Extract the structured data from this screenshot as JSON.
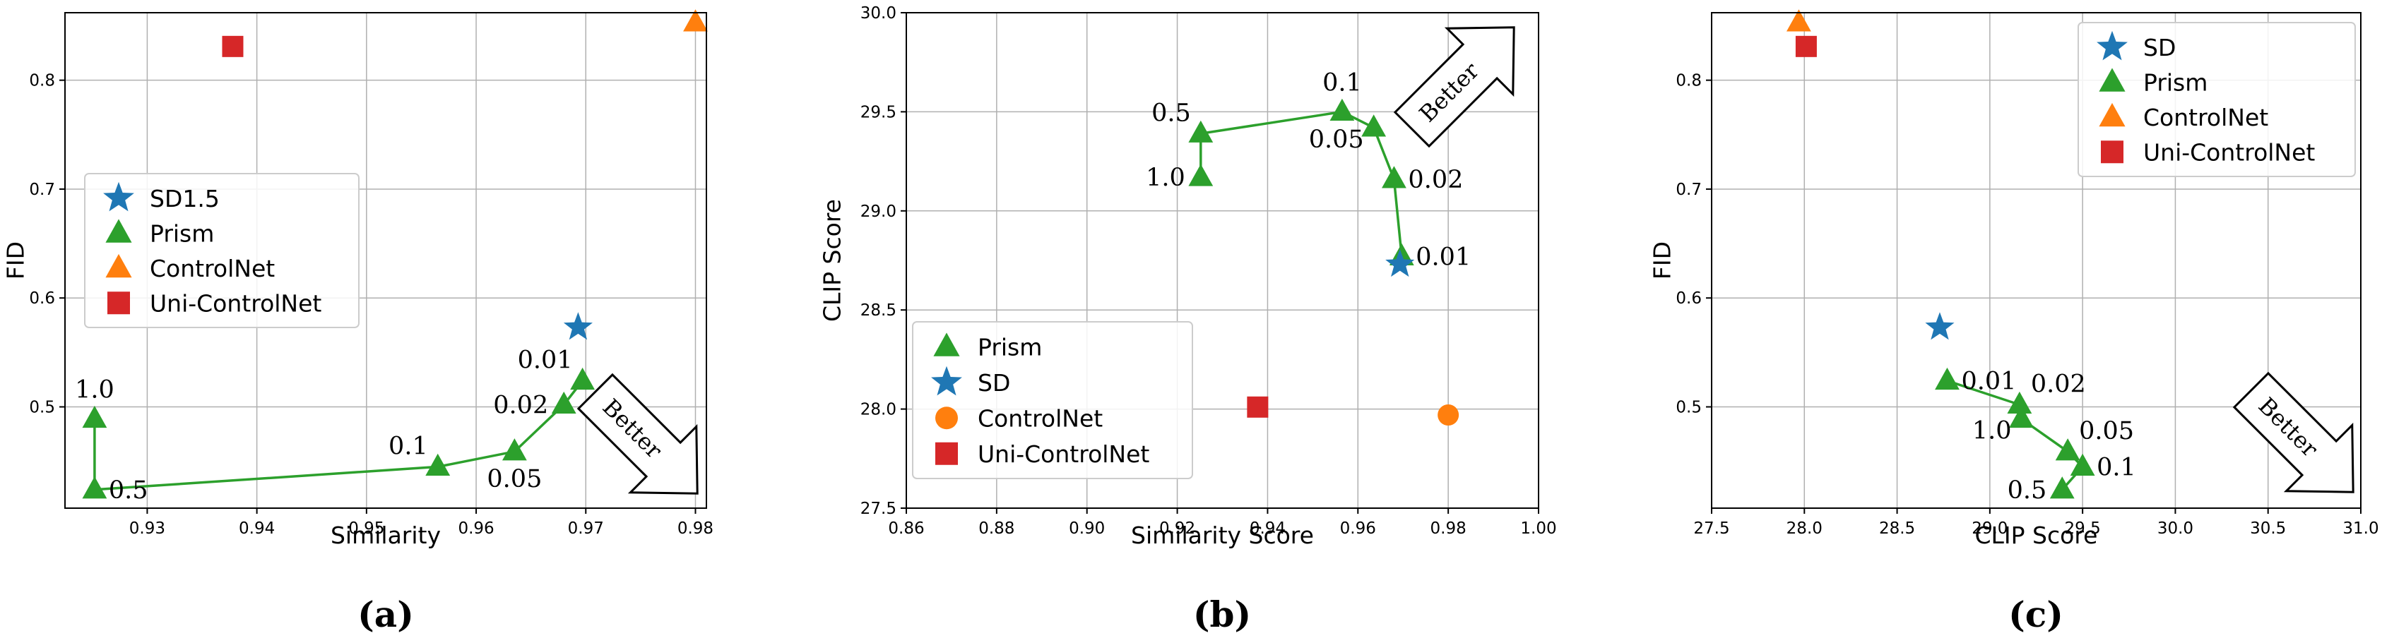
{
  "colors": {
    "SD": "#1f77b4",
    "Prism": "#2ca02c",
    "ControlNet": "#ff7f0e",
    "UniControlNet": "#d62728"
  },
  "chart_data": [
    {
      "id": "a",
      "type": "scatter",
      "caption": "(a)",
      "xlabel": "Similarity",
      "ylabel": "FID",
      "xlim": [
        0.9225,
        0.981
      ],
      "ylim": [
        0.407,
        0.862
      ],
      "xticks": [
        0.93,
        0.94,
        0.95,
        0.96,
        0.97,
        0.98
      ],
      "xtick_labels": [
        "0.93",
        "0.94",
        "0.95",
        "0.96",
        "0.97",
        "0.98"
      ],
      "yticks": [
        0.5,
        0.6,
        0.7,
        0.8
      ],
      "ytick_labels": [
        "0.5",
        "0.6",
        "0.7",
        "0.8"
      ],
      "grid": true,
      "legend": {
        "position": "center-left",
        "entries": [
          {
            "label": "SD1.5",
            "marker": "star",
            "colorKey": "SD"
          },
          {
            "label": "Prism",
            "marker": "triangle",
            "colorKey": "Prism"
          },
          {
            "label": "ControlNet",
            "marker": "triangle",
            "colorKey": "ControlNet"
          },
          {
            "label": "Uni-ControlNet",
            "marker": "square",
            "colorKey": "UniControlNet"
          }
        ]
      },
      "better_arrow": {
        "text": "Better",
        "direction": "down-right"
      },
      "series": [
        {
          "name": "Prism",
          "marker": "triangle",
          "colorKey": "Prism",
          "connected": true,
          "points": [
            {
              "x": 0.9252,
              "y": 0.489,
              "label": "1.0",
              "label_pos": "above"
            },
            {
              "x": 0.9252,
              "y": 0.424,
              "label": "0.5",
              "label_pos": "right"
            },
            {
              "x": 0.9565,
              "y": 0.445,
              "label": "0.1",
              "label_pos": "upper-left"
            },
            {
              "x": 0.9635,
              "y": 0.459,
              "label": "0.05",
              "label_pos": "below"
            },
            {
              "x": 0.968,
              "y": 0.502,
              "label": "0.02",
              "label_pos": "left"
            },
            {
              "x": 0.9697,
              "y": 0.524,
              "label": "0.01",
              "label_pos": "upper-left"
            }
          ]
        },
        {
          "name": "SD1.5",
          "marker": "star",
          "colorKey": "SD",
          "points": [
            {
              "x": 0.9693,
              "y": 0.573
            }
          ]
        },
        {
          "name": "ControlNet",
          "marker": "triangle",
          "colorKey": "ControlNet",
          "points": [
            {
              "x": 0.98,
              "y": 0.853
            }
          ]
        },
        {
          "name": "Uni-ControlNet",
          "marker": "square",
          "colorKey": "UniControlNet",
          "points": [
            {
              "x": 0.9378,
              "y": 0.831
            }
          ]
        }
      ]
    },
    {
      "id": "b",
      "type": "scatter",
      "caption": "(b)",
      "xlabel": "Similarity Score",
      "ylabel": "CLIP Score",
      "xlim": [
        0.86,
        1.0
      ],
      "ylim": [
        27.5,
        30.0
      ],
      "xticks": [
        0.86,
        0.88,
        0.9,
        0.92,
        0.94,
        0.96,
        0.98,
        1.0
      ],
      "xtick_labels": [
        "0.86",
        "0.88",
        "0.90",
        "0.92",
        "0.94",
        "0.96",
        "0.98",
        "1.00"
      ],
      "yticks": [
        27.5,
        28.0,
        28.5,
        29.0,
        29.5,
        30.0
      ],
      "ytick_labels": [
        "27.5",
        "28.0",
        "28.5",
        "29.0",
        "29.5",
        "30.0"
      ],
      "grid": true,
      "legend": {
        "position": "lower-left",
        "entries": [
          {
            "label": "Prism",
            "marker": "triangle",
            "colorKey": "Prism"
          },
          {
            "label": "SD",
            "marker": "star",
            "colorKey": "SD"
          },
          {
            "label": "ControlNet",
            "marker": "circle",
            "colorKey": "ControlNet"
          },
          {
            "label": "Uni-ControlNet",
            "marker": "square",
            "colorKey": "UniControlNet"
          }
        ]
      },
      "better_arrow": {
        "text": "Better",
        "direction": "up-right"
      },
      "series": [
        {
          "name": "Prism",
          "marker": "triangle",
          "colorKey": "Prism",
          "connected": true,
          "points": [
            {
              "x": 0.9252,
              "y": 29.17,
              "label": "1.0",
              "label_pos": "left"
            },
            {
              "x": 0.9252,
              "y": 29.39,
              "label": "0.5",
              "label_pos": "upper-left"
            },
            {
              "x": 0.9565,
              "y": 29.5,
              "label": "0.1",
              "label_pos": "above"
            },
            {
              "x": 0.9635,
              "y": 29.42,
              "label": "0.05",
              "label_pos": "lower-left"
            },
            {
              "x": 0.968,
              "y": 29.16,
              "label": "0.02",
              "label_pos": "right"
            },
            {
              "x": 0.9697,
              "y": 28.77,
              "label": "0.01",
              "label_pos": "right"
            }
          ]
        },
        {
          "name": "SD",
          "marker": "star",
          "colorKey": "SD",
          "points": [
            {
              "x": 0.9693,
              "y": 28.73
            }
          ]
        },
        {
          "name": "ControlNet",
          "marker": "circle",
          "colorKey": "ControlNet",
          "points": [
            {
              "x": 0.98,
              "y": 27.97
            }
          ]
        },
        {
          "name": "Uni-ControlNet",
          "marker": "square",
          "colorKey": "UniControlNet",
          "points": [
            {
              "x": 0.9378,
              "y": 28.01
            }
          ]
        }
      ]
    },
    {
      "id": "c",
      "type": "scatter",
      "caption": "(c)",
      "xlabel": "CLIP Score",
      "ylabel": "FID",
      "xlim": [
        27.5,
        31.0
      ],
      "ylim": [
        0.407,
        0.862
      ],
      "xticks": [
        27.5,
        28.0,
        28.5,
        29.0,
        29.5,
        30.0,
        30.5,
        31.0
      ],
      "xtick_labels": [
        "27.5",
        "28.0",
        "28.5",
        "29.0",
        "29.5",
        "30.0",
        "30.5",
        "31.0"
      ],
      "yticks": [
        0.5,
        0.6,
        0.7,
        0.8
      ],
      "ytick_labels": [
        "0.5",
        "0.6",
        "0.7",
        "0.8"
      ],
      "grid": true,
      "legend": {
        "position": "top-right",
        "entries": [
          {
            "label": "SD",
            "marker": "star",
            "colorKey": "SD"
          },
          {
            "label": "Prism",
            "marker": "triangle",
            "colorKey": "Prism"
          },
          {
            "label": "ControlNet",
            "marker": "triangle",
            "colorKey": "ControlNet"
          },
          {
            "label": "Uni-ControlNet",
            "marker": "square",
            "colorKey": "UniControlNet"
          }
        ]
      },
      "better_arrow": {
        "text": "Better",
        "direction": "down-right"
      },
      "series": [
        {
          "name": "Prism",
          "marker": "triangle",
          "colorKey": "Prism",
          "connected": true,
          "points": [
            {
              "x": 28.77,
              "y": 0.524,
              "label": "0.01",
              "label_pos": "right"
            },
            {
              "x": 29.16,
              "y": 0.502,
              "label": "0.02",
              "label_pos": "upper-right"
            },
            {
              "x": 29.17,
              "y": 0.489,
              "label": "1.0",
              "label_pos": "lower-left"
            },
            {
              "x": 29.42,
              "y": 0.459,
              "label": "0.05",
              "label_pos": "upper-right"
            },
            {
              "x": 29.5,
              "y": 0.445,
              "label": "0.1",
              "label_pos": "right"
            },
            {
              "x": 29.39,
              "y": 0.424,
              "label": "0.5",
              "label_pos": "left"
            }
          ]
        },
        {
          "name": "SD",
          "marker": "star",
          "colorKey": "SD",
          "points": [
            {
              "x": 28.73,
              "y": 0.573
            }
          ]
        },
        {
          "name": "ControlNet",
          "marker": "triangle",
          "colorKey": "ControlNet",
          "points": [
            {
              "x": 27.97,
              "y": 0.853
            }
          ]
        },
        {
          "name": "Uni-ControlNet",
          "marker": "square",
          "colorKey": "UniControlNet",
          "points": [
            {
              "x": 28.01,
              "y": 0.831
            }
          ]
        }
      ]
    }
  ]
}
